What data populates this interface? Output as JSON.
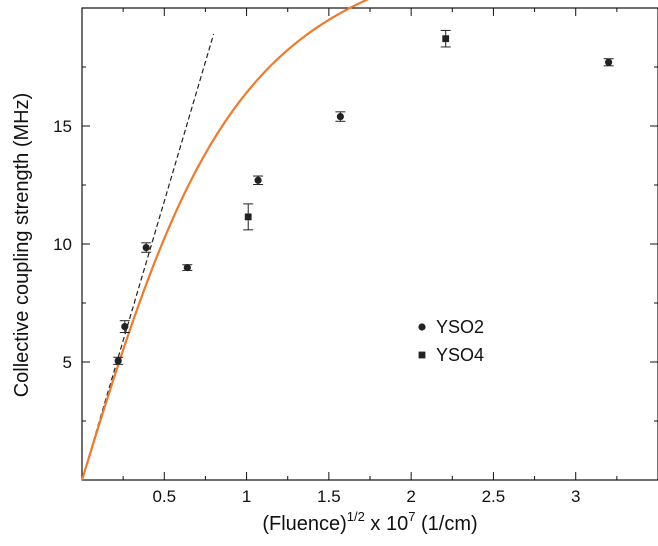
{
  "chart_data": {
    "type": "scatter",
    "xlabel_parts": [
      "(Fluence)",
      "1/2",
      " x 10",
      "7",
      " (1/cm)"
    ],
    "ylabel": "Collective coupling strength (MHz)",
    "xlim": [
      0,
      3.5
    ],
    "ylim": [
      0,
      20
    ],
    "xticks": [
      0.5,
      1,
      1.5,
      2,
      2.5,
      3
    ],
    "xtick_labels": [
      "0.5",
      "1",
      "1.5",
      "2",
      "2.5",
      "3"
    ],
    "yticks": [
      5,
      10,
      15
    ],
    "ytick_labels": [
      "5",
      "10",
      "15"
    ],
    "legend_position": "center-right",
    "series": [
      {
        "name": "YSO2",
        "marker": "circle",
        "color": "#222222",
        "points": [
          {
            "x": 0.22,
            "y": 5.05,
            "err": 0.15
          },
          {
            "x": 0.26,
            "y": 6.5,
            "err": 0.25
          },
          {
            "x": 0.39,
            "y": 9.85,
            "err": 0.2
          },
          {
            "x": 0.64,
            "y": 9.0,
            "err": 0.12
          },
          {
            "x": 1.07,
            "y": 12.7,
            "err": 0.18
          },
          {
            "x": 1.57,
            "y": 15.4,
            "err": 0.2
          },
          {
            "x": 3.2,
            "y": 17.7,
            "err": 0.15
          }
        ]
      },
      {
        "name": "YSO4",
        "marker": "square",
        "color": "#222222",
        "points": [
          {
            "x": 1.01,
            "y": 11.15,
            "err": 0.55
          },
          {
            "x": 2.21,
            "y": 18.7,
            "err": 0.35
          }
        ]
      }
    ],
    "fit_curve": {
      "color": "#ef7b2a"
    },
    "linear_guide": {
      "color": "#222222",
      "x": [
        0,
        0.8
      ],
      "y": [
        0,
        18.9
      ]
    }
  }
}
